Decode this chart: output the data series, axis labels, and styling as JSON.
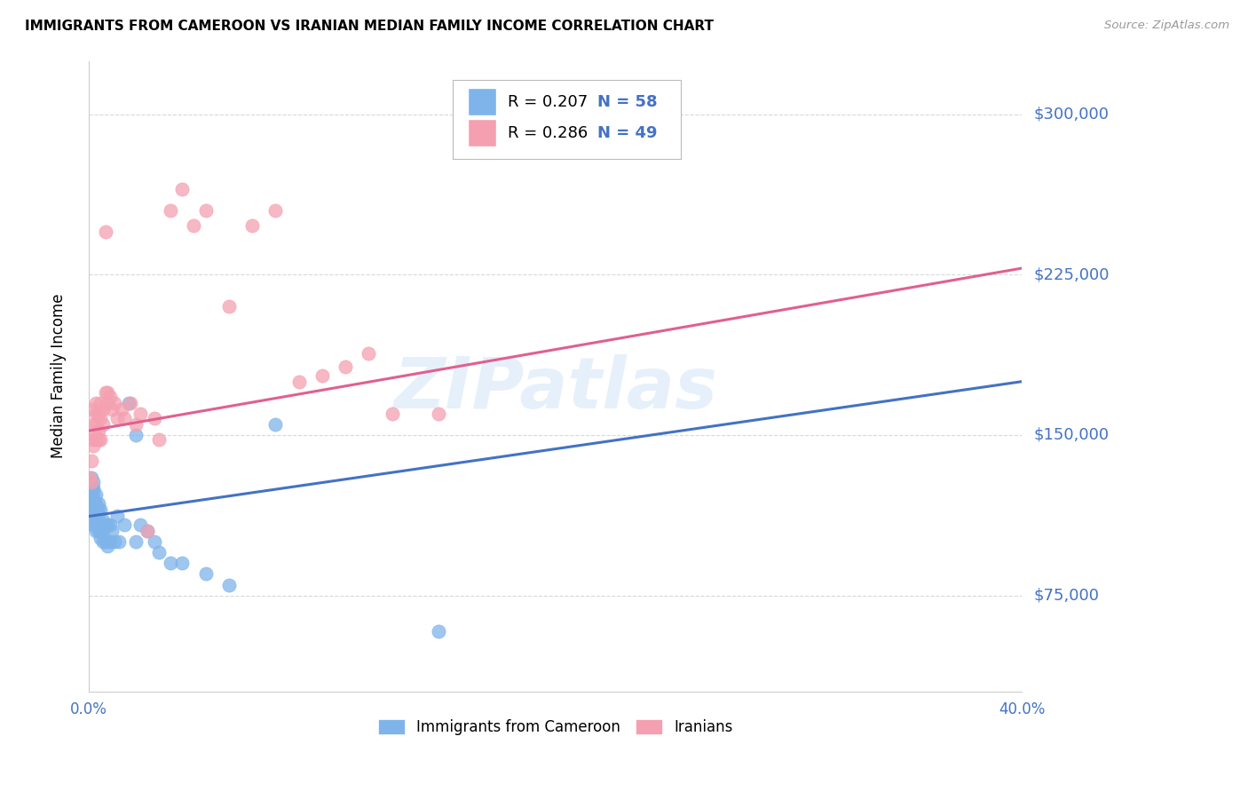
{
  "title": "IMMIGRANTS FROM CAMEROON VS IRANIAN MEDIAN FAMILY INCOME CORRELATION CHART",
  "source": "Source: ZipAtlas.com",
  "ylabel": "Median Family Income",
  "xlim": [
    0.0,
    0.4
  ],
  "ylim": [
    30000,
    325000
  ],
  "yticks": [
    75000,
    150000,
    225000,
    300000
  ],
  "ytick_labels": [
    "$75,000",
    "$150,000",
    "$225,000",
    "$300,000"
  ],
  "xticks": [
    0.0,
    0.05,
    0.1,
    0.15,
    0.2,
    0.25,
    0.3,
    0.35,
    0.4
  ],
  "xtick_labels": [
    "0.0%",
    "",
    "",
    "",
    "",
    "",
    "",
    "",
    "40.0%"
  ],
  "legend_r1": "R = 0.207",
  "legend_n1": "N = 58",
  "legend_r2": "R = 0.286",
  "legend_n2": "N = 49",
  "watermark": "ZIPatlas",
  "scatter_blue_x": [
    0.0005,
    0.001,
    0.001,
    0.001,
    0.0015,
    0.0015,
    0.0015,
    0.002,
    0.002,
    0.002,
    0.002,
    0.002,
    0.002,
    0.0025,
    0.0025,
    0.003,
    0.003,
    0.003,
    0.003,
    0.003,
    0.003,
    0.0035,
    0.004,
    0.004,
    0.004,
    0.004,
    0.004,
    0.005,
    0.005,
    0.005,
    0.005,
    0.006,
    0.006,
    0.006,
    0.007,
    0.007,
    0.008,
    0.008,
    0.009,
    0.009,
    0.01,
    0.011,
    0.012,
    0.013,
    0.015,
    0.017,
    0.02,
    0.02,
    0.022,
    0.025,
    0.028,
    0.03,
    0.035,
    0.04,
    0.05,
    0.06,
    0.08,
    0.15
  ],
  "scatter_blue_y": [
    115000,
    120000,
    125000,
    130000,
    110000,
    120000,
    125000,
    108000,
    115000,
    118000,
    122000,
    125000,
    128000,
    112000,
    118000,
    105000,
    108000,
    112000,
    115000,
    118000,
    122000,
    108000,
    105000,
    108000,
    112000,
    115000,
    118000,
    102000,
    105000,
    108000,
    115000,
    100000,
    105000,
    110000,
    100000,
    108000,
    98000,
    108000,
    100000,
    108000,
    105000,
    100000,
    112000,
    100000,
    108000,
    165000,
    150000,
    100000,
    108000,
    105000,
    100000,
    95000,
    90000,
    90000,
    85000,
    80000,
    155000,
    58000
  ],
  "scatter_pink_x": [
    0.0005,
    0.001,
    0.001,
    0.0015,
    0.002,
    0.002,
    0.002,
    0.0025,
    0.003,
    0.003,
    0.003,
    0.003,
    0.004,
    0.004,
    0.004,
    0.005,
    0.005,
    0.005,
    0.006,
    0.006,
    0.007,
    0.007,
    0.008,
    0.008,
    0.009,
    0.01,
    0.011,
    0.012,
    0.014,
    0.015,
    0.018,
    0.02,
    0.022,
    0.025,
    0.028,
    0.03,
    0.035,
    0.04,
    0.045,
    0.05,
    0.06,
    0.07,
    0.08,
    0.09,
    0.1,
    0.11,
    0.12,
    0.13,
    0.15
  ],
  "scatter_pink_y": [
    130000,
    128000,
    138000,
    148000,
    162000,
    145000,
    155000,
    150000,
    160000,
    148000,
    155000,
    165000,
    152000,
    160000,
    148000,
    158000,
    165000,
    148000,
    162000,
    155000,
    170000,
    245000,
    165000,
    170000,
    168000,
    162000,
    165000,
    158000,
    162000,
    158000,
    165000,
    155000,
    160000,
    105000,
    158000,
    148000,
    255000,
    265000,
    248000,
    255000,
    210000,
    248000,
    255000,
    175000,
    178000,
    182000,
    188000,
    160000,
    160000
  ],
  "trendline_blue_x0": 0.0,
  "trendline_blue_x1": 0.4,
  "trendline_blue_y0": 112000,
  "trendline_blue_y1": 175000,
  "trendline_pink_x0": 0.0,
  "trendline_pink_x1": 0.4,
  "trendline_pink_y0": 152000,
  "trendline_pink_y1": 228000,
  "blue_color": "#7eb4ea",
  "pink_color": "#f4a0b0",
  "trendline_blue_color": "#4472c4",
  "trendline_pink_color": "#e06090",
  "right_label_color": "#4472c4",
  "legend_text_color": "#4472c4",
  "background_color": "#ffffff",
  "grid_color": "#d8d8d8",
  "watermark_color": "#c8dff5"
}
